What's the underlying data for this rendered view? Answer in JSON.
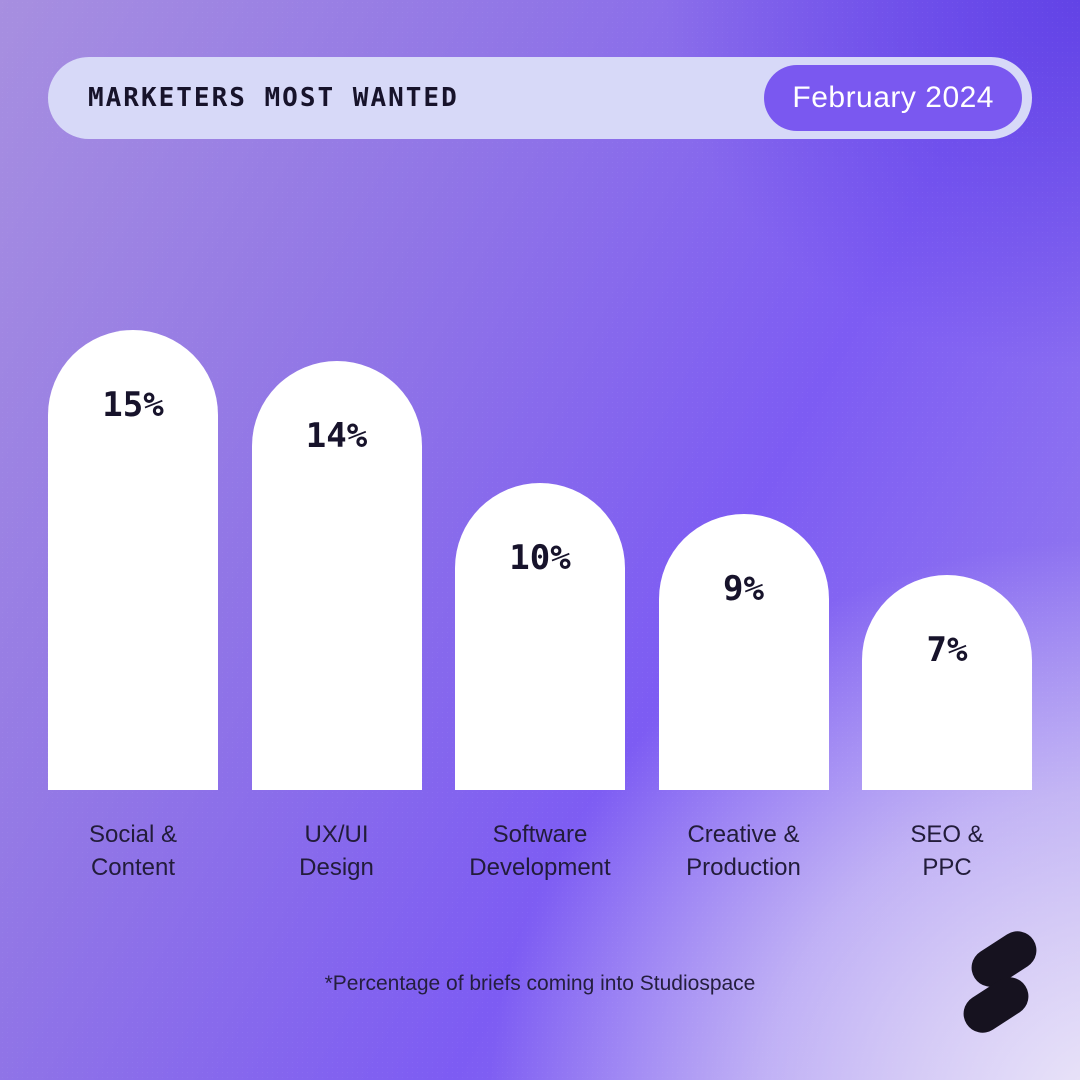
{
  "header": {
    "title": "MARKETERS MOST WANTED",
    "badge_label": "February 2024"
  },
  "chart_data": {
    "type": "bar",
    "title": "MARKETERS MOST WANTED",
    "subtitle": "February 2024",
    "categories": [
      "Social & Content",
      "UX/UI Design",
      "Software Development",
      "Creative & Production",
      "SEO & PPC"
    ],
    "values": [
      15,
      14,
      10,
      9,
      7
    ],
    "value_labels": [
      "15%",
      "14%",
      "10%",
      "9%",
      "7%"
    ],
    "unit": "% of briefs",
    "ylim": [
      0,
      16
    ],
    "grid": false,
    "legend": "none",
    "bars": [
      {
        "label_line1": "Social &",
        "label_line2": "Content",
        "value": 15,
        "display": "15%"
      },
      {
        "label_line1": "UX/UI",
        "label_line2": "Design",
        "value": 14,
        "display": "14%"
      },
      {
        "label_line1": "Software",
        "label_line2": "Development",
        "value": 10,
        "display": "10%"
      },
      {
        "label_line1": "Creative &",
        "label_line2": "Production",
        "value": 9,
        "display": "9%"
      },
      {
        "label_line1": "SEO &",
        "label_line2": "PPC",
        "value": 7,
        "display": "7%"
      }
    ]
  },
  "footnote": "*Percentage of briefs coming into Studiospace",
  "branding": {
    "logo": "studiospace-logo"
  },
  "colors": {
    "header_bg": "#d7d9f8",
    "header_text": "#17132b",
    "badge_bg": "#7a58f0",
    "badge_text": "#ffffff",
    "bar_fill": "#ffffff",
    "value_text": "#17132b",
    "label_text": "#221c3a",
    "footnote_text": "#241e3e",
    "logo_color": "#16121f",
    "bg_top_left": "#a78fe0",
    "bg_top_right": "#6243e6",
    "bg_bottom_left": "#7d5cf3",
    "bg_bottom_right": "#ece7f9"
  }
}
